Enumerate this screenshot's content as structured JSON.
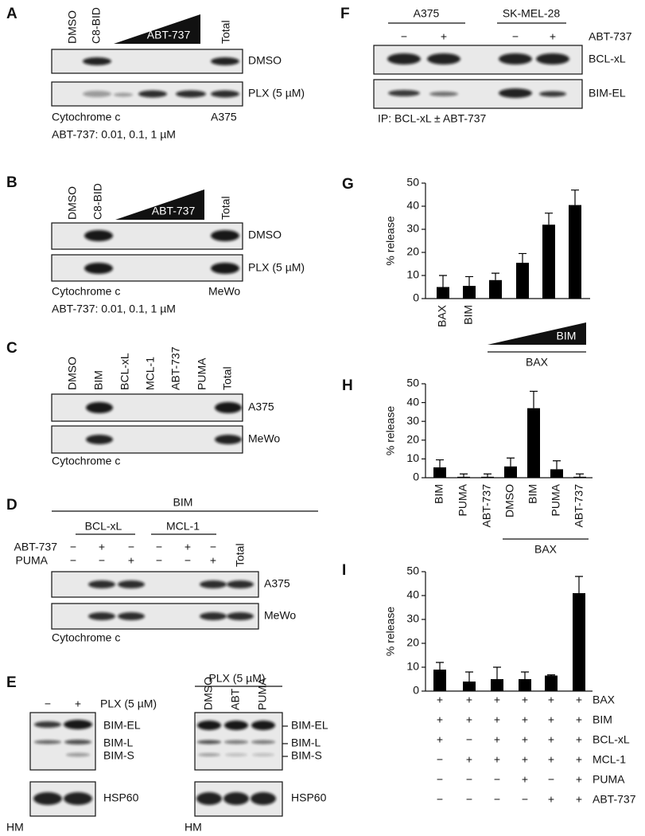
{
  "panels": {
    "A": {
      "label": "A",
      "lanes": [
        "DMSO",
        "C8-BID",
        "Total"
      ],
      "wedge": "ABT-737",
      "rows": [
        "DMSO",
        "PLX (5 µM)"
      ],
      "caption": "Cytochrome c",
      "cell_line": "A375",
      "note": "ABT-737: 0.01, 0.1, 1 µM"
    },
    "B": {
      "label": "B",
      "lanes": [
        "DMSO",
        "C8-BID",
        "Total"
      ],
      "wedge": "ABT-737",
      "rows": [
        "DMSO",
        "PLX (5 µM)"
      ],
      "caption": "Cytochrome c",
      "cell_line": "MeWo",
      "note": "ABT-737: 0.01, 0.1, 1 µM"
    },
    "C": {
      "label": "C",
      "lanes": [
        "DMSO",
        "BIM",
        "BCL-xL",
        "MCL-1",
        "ABT-737",
        "PUMA",
        "Total"
      ],
      "rows": [
        "A375",
        "MeWo"
      ],
      "caption": "Cytochrome c"
    },
    "D": {
      "label": "D",
      "header": "BIM",
      "groups": [
        "BCL-xL",
        "MCL-1"
      ],
      "conditions": [
        {
          "name": "ABT-737",
          "signs": [
            "−",
            "+",
            "−",
            "−",
            "+",
            "−"
          ]
        },
        {
          "name": "PUMA",
          "signs": [
            "−",
            "−",
            "+",
            "−",
            "−",
            "+"
          ]
        }
      ],
      "lane": "Total",
      "rows": [
        "A375",
        "MeWo"
      ],
      "caption": "Cytochrome c"
    },
    "E": {
      "label": "E",
      "left": {
        "signs": [
          "−",
          "+"
        ],
        "treatment": "PLX (5 µM)",
        "bands": [
          "BIM-EL",
          "BIM-L",
          "BIM-S"
        ],
        "loading": "HSP60",
        "fraction": "HM"
      },
      "right": {
        "header": "PLX (5 µM)",
        "lanes": [
          "DMSO",
          "ABT",
          "PUMA"
        ],
        "bands": [
          "BIM-EL",
          "BIM-L",
          "BIM-S"
        ],
        "loading": "HSP60",
        "fraction": "HM"
      }
    },
    "F": {
      "label": "F",
      "groups": [
        "A375",
        "SK-MEL-28"
      ],
      "signs": [
        "−",
        "+",
        "−",
        "+"
      ],
      "treatment": "ABT-737",
      "rows": [
        "BCL-xL",
        "BIM-EL"
      ],
      "caption": "IP: BCL-xL ± ABT-737"
    }
  },
  "chart_data": [
    {
      "type": "bar",
      "panel": "G",
      "ylabel": "% release",
      "categories": [
        "BAX",
        "BIM",
        null,
        null,
        null,
        null
      ],
      "values": [
        5,
        5.5,
        8,
        15.5,
        32,
        40.5
      ],
      "errors": [
        5,
        4,
        3,
        4,
        5,
        6.5
      ],
      "color": "#000000",
      "ylim": [
        0,
        50
      ],
      "yticks": [
        0,
        10,
        20,
        30,
        40,
        50
      ],
      "wedge_label": "BIM",
      "group_label": "BAX"
    },
    {
      "type": "bar",
      "panel": "H",
      "ylabel": "% release",
      "categories": [
        "BIM",
        "PUMA",
        "ABT-737",
        "DMSO",
        "BIM",
        "PUMA",
        "ABT-737"
      ],
      "values": [
        5.5,
        0.5,
        0.5,
        6,
        37,
        4.5,
        0.5
      ],
      "errors": [
        4,
        1.5,
        1.5,
        4.5,
        9,
        4.5,
        1.5
      ],
      "color": "#000000",
      "ylim": [
        0,
        50
      ],
      "yticks": [
        0,
        10,
        20,
        30,
        40,
        50
      ],
      "group_label": "BAX"
    },
    {
      "type": "bar",
      "panel": "I",
      "ylabel": "% release",
      "values": [
        9,
        4,
        5,
        5,
        6.5,
        41
      ],
      "errors": [
        3,
        4,
        5,
        3,
        0.3,
        7
      ],
      "color": "#000000",
      "ylim": [
        0,
        50
      ],
      "yticks": [
        0,
        10,
        20,
        30,
        40,
        50
      ],
      "conditions": [
        {
          "name": "BAX",
          "signs": [
            "+",
            "+",
            "+",
            "+",
            "+",
            "+"
          ]
        },
        {
          "name": "BIM",
          "signs": [
            "+",
            "+",
            "+",
            "+",
            "+",
            "+"
          ]
        },
        {
          "name": "BCL-xL",
          "signs": [
            "+",
            "−",
            "+",
            "+",
            "+",
            "+"
          ]
        },
        {
          "name": "MCL-1",
          "signs": [
            "−",
            "+",
            "+",
            "+",
            "+",
            "+"
          ]
        },
        {
          "name": "PUMA",
          "signs": [
            "−",
            "−",
            "−",
            "+",
            "−",
            "+"
          ]
        },
        {
          "name": "ABT-737",
          "signs": [
            "−",
            "−",
            "−",
            "−",
            "+",
            "+"
          ]
        }
      ]
    }
  ]
}
